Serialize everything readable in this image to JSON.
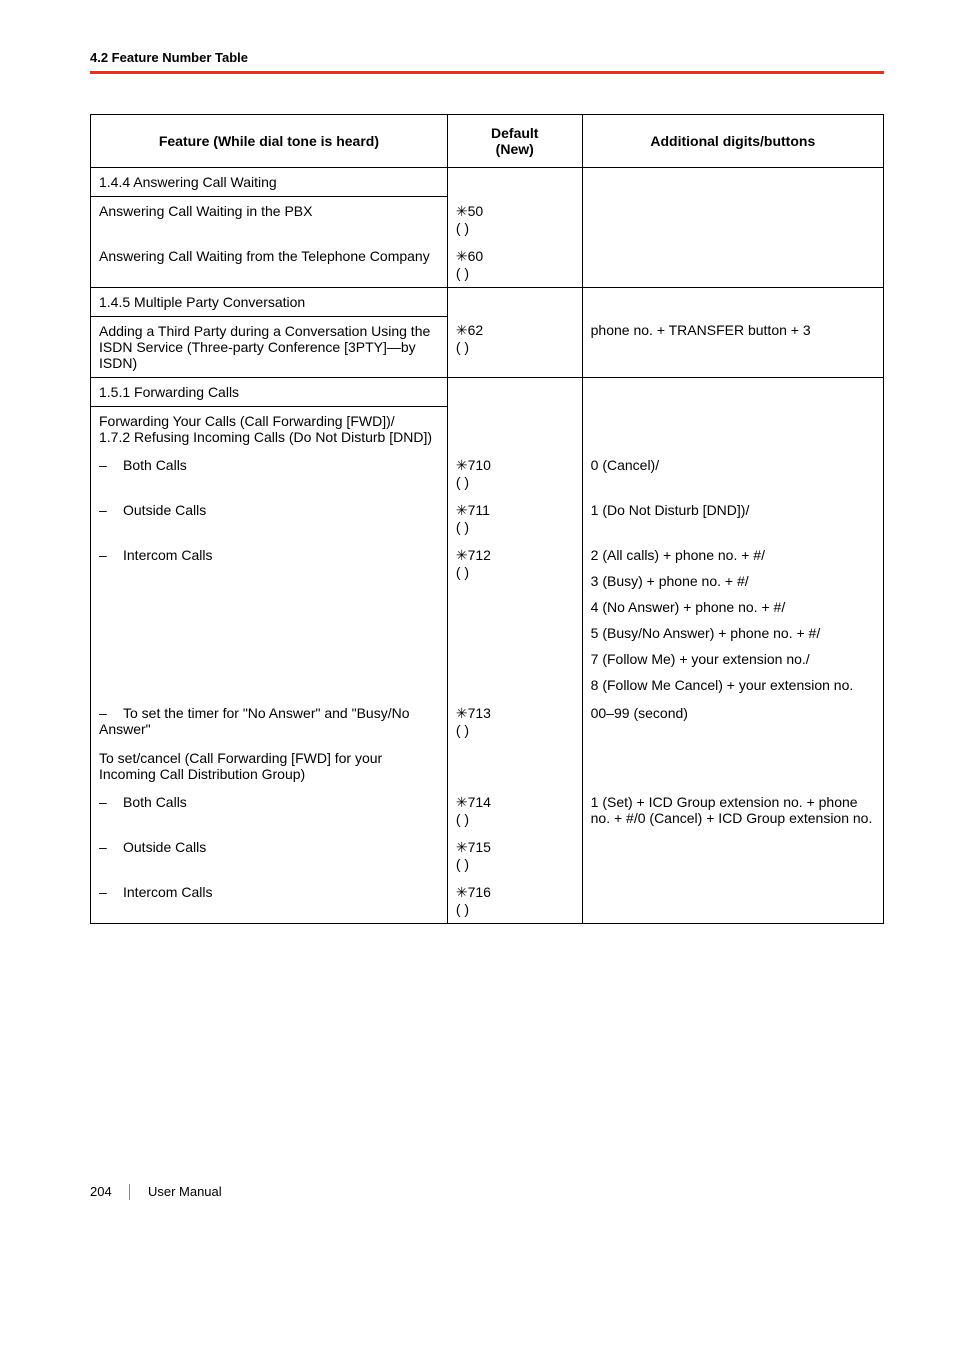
{
  "section_heading": "4.2 Feature Number Table",
  "columns": {
    "feature": "Feature (While dial tone is heard)",
    "default": "Default\n(New)",
    "additional": "Additional digits/buttons"
  },
  "star": "✳",
  "rows": [
    {
      "type": "section",
      "feature": "1.4.4 Answering Call Waiting"
    },
    {
      "type": "item",
      "feature": "Answering Call Waiting in the PBX",
      "code": "50"
    },
    {
      "type": "item",
      "feature": "Answering Call Waiting from the Telephone Company",
      "code": "60",
      "group_end": true
    },
    {
      "type": "section",
      "feature": "1.4.5 Multiple Party Conversation"
    },
    {
      "type": "item",
      "feature": "Adding a Third Party during a Conversation Using the ISDN Service (Three-party Conference [3PTY]—by ISDN)",
      "code": "62",
      "additional": "phone no. + TRANSFER button + 3",
      "group_end": true
    },
    {
      "type": "section",
      "feature": "1.5.1 Forwarding Calls"
    },
    {
      "type": "plain",
      "feature": "Forwarding Your Calls (Call Forwarding [FWD])/\n1.7.2 Refusing Incoming Calls (Do Not Disturb [DND])"
    },
    {
      "type": "sub",
      "label": "Both Calls",
      "code": "710",
      "additional": "0 (Cancel)/"
    },
    {
      "type": "sub",
      "label": "Outside Calls",
      "code": "711",
      "additional": "1 (Do Not Disturb [DND])/"
    },
    {
      "type": "sub",
      "label": "Intercom Calls",
      "code": "712",
      "additional_lines": [
        "2 (All calls) + phone no. + #/",
        "3 (Busy) + phone no. + #/",
        "4 (No Answer) + phone no. + #/",
        "5 (Busy/No Answer) + phone no. + #/",
        "7 (Follow Me) + your extension no./",
        "8 (Follow Me Cancel) + your extension no."
      ]
    },
    {
      "type": "sub2",
      "label": "To set the timer for \"No Answer\" and \"Busy/No Answer\"",
      "code": "713",
      "additional": "00–99 (second)"
    },
    {
      "type": "plain",
      "feature": "To set/cancel (Call Forwarding [FWD] for your Incoming Call Distribution Group)"
    },
    {
      "type": "sub",
      "label": "Both Calls",
      "code": "714",
      "additional": "1 (Set) + ICD Group extension no. + phone no. + #/0 (Cancel) + ICD Group extension no."
    },
    {
      "type": "sub",
      "label": "Outside Calls",
      "code": "715"
    },
    {
      "type": "sub",
      "label": "Intercom Calls",
      "code": "716",
      "group_end": true
    }
  ],
  "footer": {
    "page": "204",
    "label": "User Manual"
  }
}
